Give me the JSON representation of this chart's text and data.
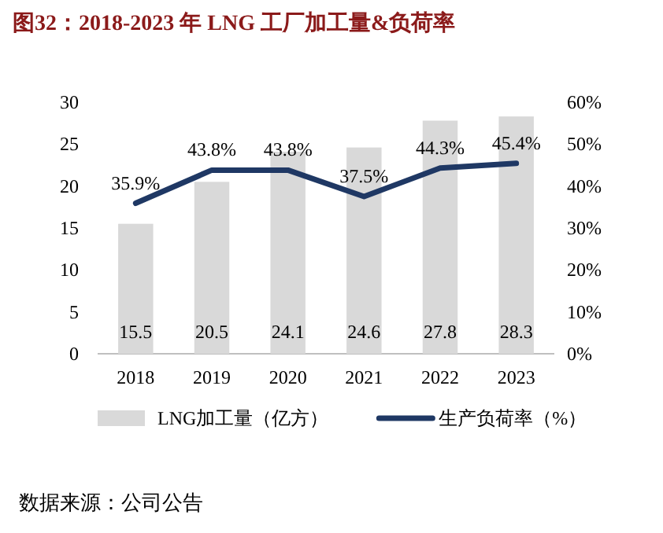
{
  "chart_data": {
    "type": "bar",
    "title": "图32：2018-2023 年 LNG 工厂加工量&负荷率",
    "categories": [
      "2018",
      "2019",
      "2020",
      "2021",
      "2022",
      "2023"
    ],
    "series": [
      {
        "name": "LNG加工量（亿方）",
        "color": "#d9d9d9",
        "values": [
          15.5,
          20.5,
          24.1,
          24.6,
          27.8,
          28.3
        ],
        "value_labels": [
          "15.5",
          "20.5",
          "24.1",
          "24.6",
          "27.8",
          "28.3"
        ]
      },
      {
        "name": "生产负荷率（%）",
        "type": "line",
        "axis": "y2",
        "color": "#1f3864",
        "values": [
          35.9,
          43.8,
          43.8,
          37.5,
          44.3,
          45.4
        ],
        "value_labels": [
          "35.9%",
          "43.8%",
          "43.8%",
          "37.5%",
          "44.3%",
          "45.4%"
        ]
      }
    ],
    "ylim": [
      0,
      30
    ],
    "yticks": [
      0,
      5,
      10,
      15,
      20,
      25,
      30
    ],
    "y2lim": [
      0,
      60
    ],
    "y2ticks": [
      {
        "value": 0,
        "label": "0%"
      },
      {
        "value": 10,
        "label": "10%"
      },
      {
        "value": 20,
        "label": "20%"
      },
      {
        "value": 30,
        "label": "30%"
      },
      {
        "value": 40,
        "label": "40%"
      },
      {
        "value": 50,
        "label": "50%"
      },
      {
        "value": 60,
        "label": "60%"
      }
    ],
    "legend": "bottom",
    "grid": false,
    "marker": "none",
    "annotations": [
      "数据来源：公司公告"
    ]
  }
}
